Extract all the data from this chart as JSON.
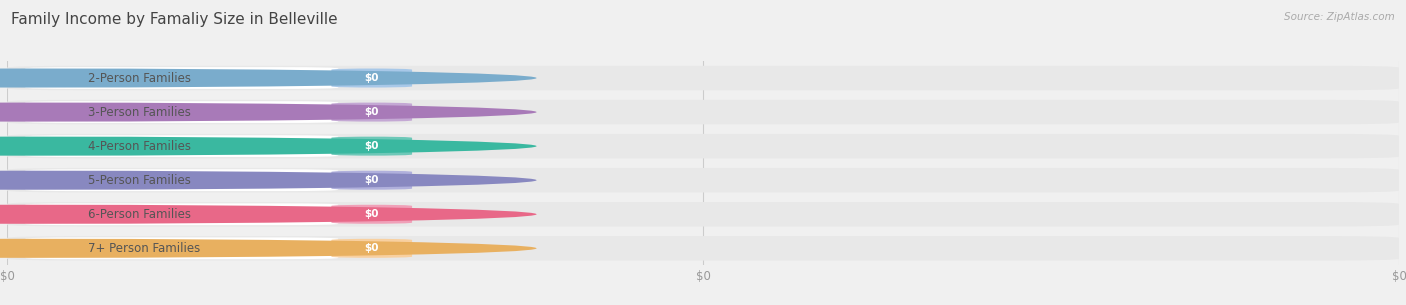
{
  "title": "Family Income by Famaliy Size in Belleville",
  "source": "Source: ZipAtlas.com",
  "categories": [
    "2-Person Families",
    "3-Person Families",
    "4-Person Families",
    "5-Person Families",
    "6-Person Families",
    "7+ Person Families"
  ],
  "values": [
    0,
    0,
    0,
    0,
    0,
    0
  ],
  "bar_colors": [
    "#a8c8e8",
    "#c4a8d4",
    "#6ec8b8",
    "#b0b0dc",
    "#f0a0b8",
    "#f8d0a0"
  ],
  "dot_colors": [
    "#7aaccc",
    "#a87ab8",
    "#3ab8a0",
    "#8888c0",
    "#e86888",
    "#e8b060"
  ],
  "background_color": "#f0f0f0",
  "bar_bg_color": "#e8e8e8",
  "white_bar_color": "#ffffff",
  "title_fontsize": 11,
  "label_fontsize": 8.5,
  "value_fontsize": 7.5,
  "source_fontsize": 7.5,
  "xtick_labels": [
    "$0",
    "$0",
    "$0"
  ],
  "xtick_positions": [
    0,
    0.5,
    1.0
  ]
}
